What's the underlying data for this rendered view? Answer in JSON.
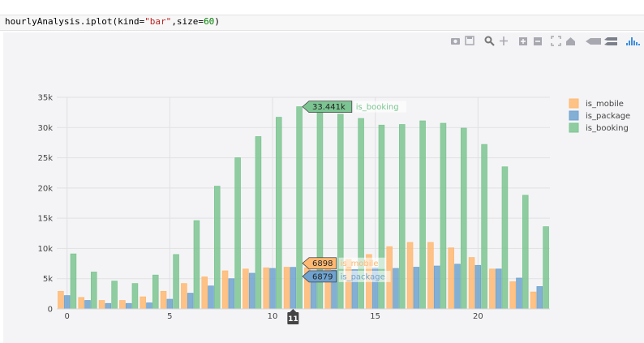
{
  "code_cell": {
    "prefix": "hourlyAnalysis.iplot(kind=",
    "kind_value": "\"bar\"",
    "mid": ",size=",
    "size_value": "60",
    "suffix": ")"
  },
  "modebar": {
    "icons": [
      "camera-icon",
      "save-icon",
      "zoom-icon",
      "pan-icon",
      "zoom-in-icon",
      "zoom-out-icon",
      "autoscale-icon",
      "home-icon",
      "spike-icon",
      "compare-icon",
      "plotly-logo-icon"
    ]
  },
  "chart_data": {
    "type": "bar",
    "x": [
      0,
      1,
      2,
      3,
      4,
      5,
      6,
      7,
      8,
      9,
      10,
      11,
      12,
      13,
      14,
      15,
      16,
      17,
      18,
      19,
      20,
      21,
      22,
      23
    ],
    "ylim": [
      0,
      35000
    ],
    "xlim": [
      -0.5,
      23.5
    ],
    "y_ticks": [
      0,
      5000,
      10000,
      15000,
      20000,
      25000,
      30000,
      35000
    ],
    "y_tick_labels": [
      "0",
      "5k",
      "10k",
      "15k",
      "20k",
      "25k",
      "30k",
      "35k"
    ],
    "x_ticks": [
      0,
      5,
      10,
      15,
      20
    ],
    "x_tick_labels": [
      "0",
      "5",
      "10",
      "15",
      "20"
    ],
    "series": [
      {
        "name": "is_mobile",
        "color": "#ffb972",
        "values": [
          2900,
          1900,
          1400,
          1400,
          2000,
          2900,
          4200,
          5300,
          6300,
          6600,
          6800,
          6898,
          6800,
          6700,
          8200,
          9000,
          10300,
          11000,
          11000,
          10100,
          8500,
          6600,
          4500,
          2800
        ]
      },
      {
        "name": "is_package",
        "color": "#6fa2cf",
        "values": [
          2200,
          1400,
          900,
          900,
          1000,
          1600,
          2600,
          3800,
          5000,
          5900,
          6700,
          6879,
          6300,
          6400,
          6500,
          6800,
          6700,
          6900,
          7100,
          7400,
          7200,
          6600,
          5100,
          3700
        ]
      },
      {
        "name": "is_booking",
        "color": "#7cc592",
        "values": [
          9100,
          6100,
          4600,
          4200,
          5600,
          9000,
          14600,
          20300,
          25000,
          28500,
          31700,
          33441,
          32600,
          32200,
          31500,
          30400,
          30500,
          31100,
          30700,
          29900,
          27200,
          23500,
          18800,
          13600
        ]
      }
    ],
    "legend": {
      "position": "top-right",
      "entries": [
        "is_mobile",
        "is_package",
        "is_booking"
      ]
    },
    "hover": {
      "x_label": "11",
      "booking": {
        "value": "33.441k",
        "name": "is_booking"
      },
      "mobile": {
        "value": "6898",
        "name": "is_mobile"
      },
      "package": {
        "value": "6879",
        "name": "is_package"
      }
    },
    "grid": true
  }
}
